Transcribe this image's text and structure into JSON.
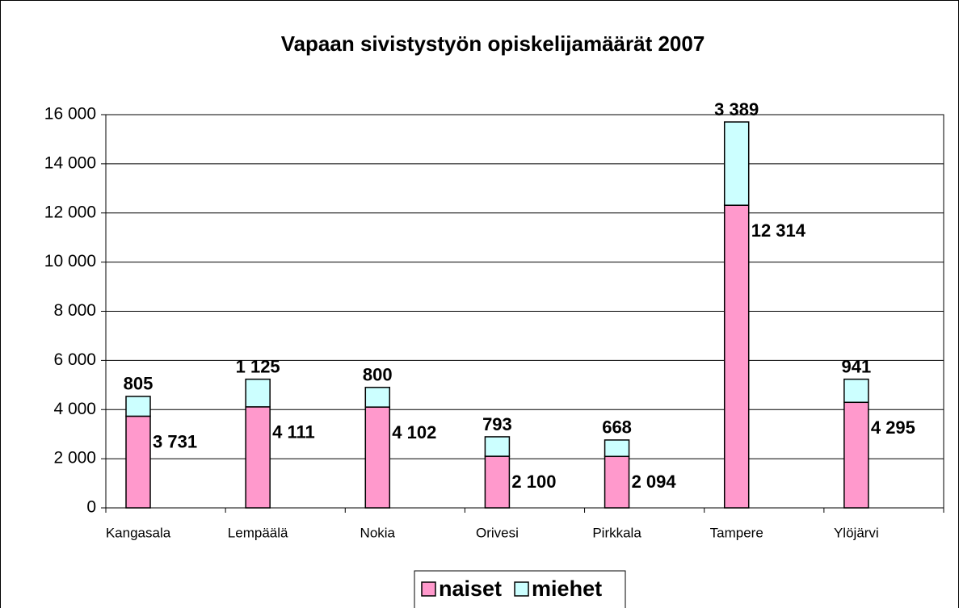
{
  "chart_data": {
    "type": "stacked_bar",
    "title": "Vapaan sivistystyön opiskelijamäärät 2007",
    "categories": [
      "Kangasala",
      "Lempäälä",
      "Nokia",
      "Orivesi",
      "Pirkkala",
      "Tampere",
      "Ylöjärvi"
    ],
    "series": [
      {
        "name": "naiset",
        "color": "#ff99cc",
        "values": [
          3731,
          4111,
          4102,
          2100,
          2094,
          12314,
          4295
        ],
        "value_labels": [
          "3 731",
          "4 111",
          "4 102",
          "2 100",
          "2 094",
          "12 314",
          "4 295"
        ]
      },
      {
        "name": "miehet",
        "color": "#ccffff",
        "values": [
          805,
          1125,
          800,
          793,
          668,
          3389,
          941
        ],
        "value_labels": [
          "805",
          "1 125",
          "800",
          "793",
          "668",
          "3 389",
          "941"
        ]
      }
    ],
    "ylim": [
      0,
      16000
    ],
    "yticks": [
      0,
      {
        "value": 2000,
        "label": "2 000"
      },
      {
        "value": 4000,
        "label": "4 000"
      },
      {
        "value": 6000,
        "label": "6 000"
      },
      {
        "value": 8000,
        "label": "8 000"
      },
      {
        "value": 10000,
        "label": "10 000"
      },
      {
        "value": 12000,
        "label": "12 000"
      },
      {
        "value": 14000,
        "label": "14 000"
      },
      {
        "value": 16000,
        "label": "16 000"
      }
    ],
    "grid": true,
    "legend": "bottom"
  }
}
